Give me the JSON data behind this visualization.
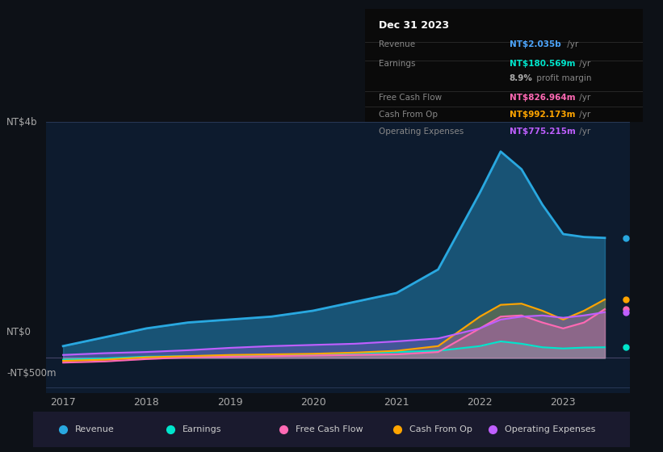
{
  "bg_color": "#0d1117",
  "plot_bg_color": "#0d1b2e",
  "title": "Dec 31 2023",
  "info_box": {
    "title": "Dec 31 2023",
    "rows": [
      {
        "label": "Revenue",
        "value": "NT$2.035b /yr",
        "value_color": "#4da6ff"
      },
      {
        "label": "Earnings",
        "value": "NT$180.569m /yr",
        "value_color": "#00e5cc"
      },
      {
        "label": "",
        "value": "8.9% profit margin",
        "value_color": "#aaaaaa",
        "bold_part": "8.9%"
      },
      {
        "label": "Free Cash Flow",
        "value": "NT$826.964m /yr",
        "value_color": "#ff69b4"
      },
      {
        "label": "Cash From Op",
        "value": "NT$992.173m /yr",
        "value_color": "#ffa500"
      },
      {
        "label": "Operating Expenses",
        "value": "NT$775.215m /yr",
        "value_color": "#bf5fff"
      }
    ]
  },
  "x_years": [
    2017,
    2017.5,
    2018,
    2018.5,
    2019,
    2019.5,
    2020,
    2020.5,
    2021,
    2021.5,
    2022,
    2022.25,
    2022.5,
    2022.75,
    2023,
    2023.25,
    2023.5
  ],
  "revenue": [
    200,
    350,
    500,
    600,
    650,
    700,
    800,
    950,
    1100,
    1500,
    2800,
    3500,
    3200,
    2600,
    2100,
    2050,
    2035
  ],
  "earnings": [
    -30,
    -10,
    20,
    30,
    40,
    50,
    60,
    80,
    100,
    120,
    200,
    280,
    240,
    180,
    160,
    175,
    180
  ],
  "free_cash_flow": [
    -80,
    -60,
    -20,
    10,
    20,
    30,
    40,
    50,
    60,
    100,
    500,
    700,
    720,
    600,
    500,
    600,
    827
  ],
  "cash_from_op": [
    -50,
    -30,
    10,
    30,
    50,
    60,
    70,
    90,
    120,
    200,
    700,
    900,
    920,
    800,
    650,
    800,
    992
  ],
  "op_expenses": [
    50,
    80,
    100,
    130,
    170,
    200,
    220,
    240,
    280,
    330,
    500,
    650,
    700,
    720,
    680,
    720,
    775
  ],
  "ylabel_top": "NT$4b",
  "ylabel_zero": "NT$0",
  "ylabel_neg": "-NT$500m",
  "ylim": [
    -600,
    4000
  ],
  "yticks": [
    -500,
    0,
    4000
  ],
  "xticks": [
    2017,
    2018,
    2019,
    2020,
    2021,
    2022,
    2023
  ],
  "revenue_color": "#29a8e0",
  "earnings_color": "#00e5cc",
  "free_cash_flow_color": "#ff69b4",
  "cash_from_op_color": "#ffa500",
  "op_expenses_color": "#bf5fff",
  "legend_items": [
    {
      "label": "Revenue",
      "color": "#29a8e0"
    },
    {
      "label": "Earnings",
      "color": "#00e5cc"
    },
    {
      "label": "Free Cash Flow",
      "color": "#ff69b4"
    },
    {
      "label": "Cash From Op",
      "color": "#ffa500"
    },
    {
      "label": "Operating Expenses",
      "color": "#bf5fff"
    }
  ]
}
